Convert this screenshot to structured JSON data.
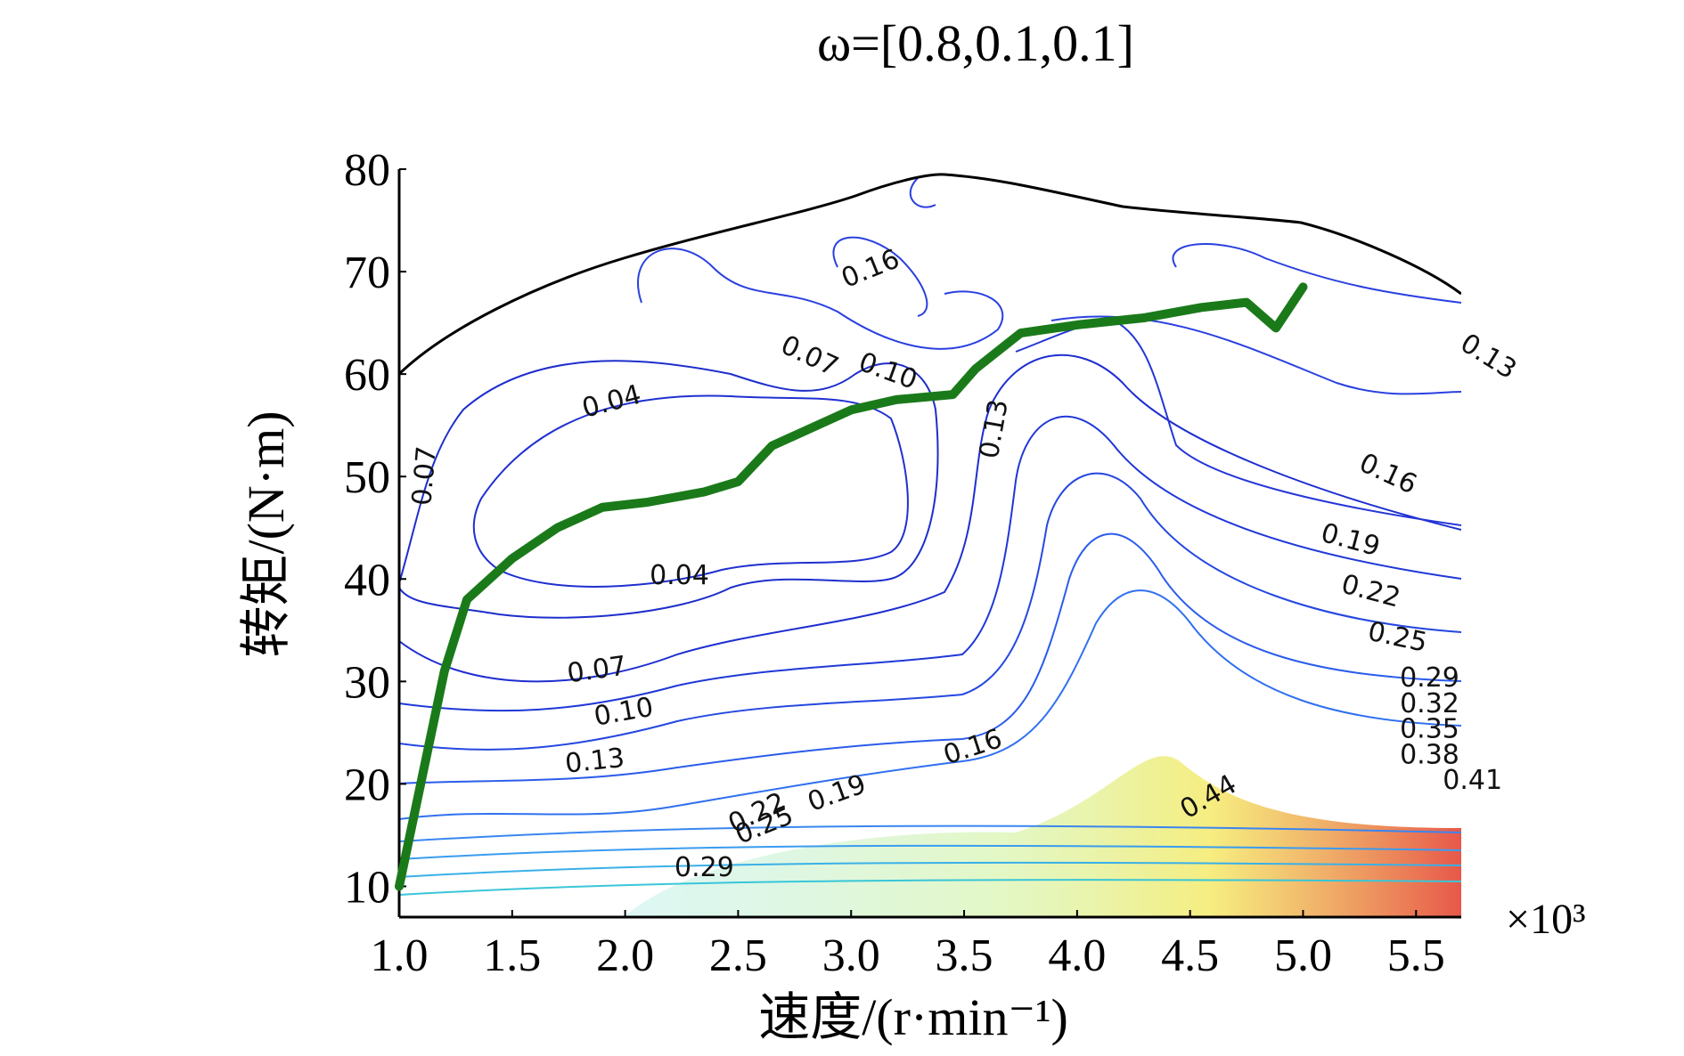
{
  "chart_data": {
    "type": "contour",
    "title": "ω=[0.8,0.1,0.1]",
    "xlabel": "速度/(r·min⁻¹)",
    "ylabel": "转矩/(N·m)",
    "x_multiplier": "×10³",
    "xlim": [
      1.0,
      5.7
    ],
    "ylim": [
      7,
      80
    ],
    "x_ticks": [
      "1.0",
      "1.5",
      "2.0",
      "2.5",
      "3.0",
      "3.5",
      "4.0",
      "4.5",
      "5.0",
      "5.5"
    ],
    "y_ticks": [
      "10",
      "20",
      "30",
      "40",
      "50",
      "60",
      "70",
      "80"
    ],
    "y_tick_values": [
      10,
      20,
      30,
      40,
      50,
      60,
      70,
      80
    ],
    "contour_labels": [
      {
        "text": "0.16",
        "x": 3.1,
        "y": 69.5,
        "angle": -22
      },
      {
        "text": "0.07",
        "x": 2.8,
        "y": 61.0,
        "angle": 25
      },
      {
        "text": "0.10",
        "x": 3.15,
        "y": 59.5,
        "angle": 20
      },
      {
        "text": "0.04",
        "x": 1.95,
        "y": 56.5,
        "angle": -15
      },
      {
        "text": "0.07",
        "x": 1.15,
        "y": 50.0,
        "angle": -85
      },
      {
        "text": "0.13",
        "x": 3.67,
        "y": 54.5,
        "angle": -80
      },
      {
        "text": "0.13",
        "x": 5.8,
        "y": 61.0,
        "angle": 32
      },
      {
        "text": "0.16",
        "x": 5.36,
        "y": 49.5,
        "angle": 25
      },
      {
        "text": "0.19",
        "x": 5.2,
        "y": 43.0,
        "angle": 15
      },
      {
        "text": "0.22",
        "x": 5.29,
        "y": 38.0,
        "angle": 15
      },
      {
        "text": "0.25",
        "x": 5.41,
        "y": 33.5,
        "angle": 12
      },
      {
        "text": "0.04",
        "x": 2.24,
        "y": 39.5,
        "angle": 0
      },
      {
        "text": "0.07",
        "x": 1.88,
        "y": 30.3,
        "angle": -8
      },
      {
        "text": "0.10",
        "x": 2.0,
        "y": 26.2,
        "angle": -10
      },
      {
        "text": "0.13",
        "x": 1.87,
        "y": 21.4,
        "angle": -6
      },
      {
        "text": "0.16",
        "x": 3.55,
        "y": 22.8,
        "angle": -18
      },
      {
        "text": "0.19",
        "x": 2.95,
        "y": 18.3,
        "angle": -20
      },
      {
        "text": "0.22",
        "x": 2.6,
        "y": 16.4,
        "angle": -25
      },
      {
        "text": "0.25",
        "x": 2.63,
        "y": 15.2,
        "angle": -22
      },
      {
        "text": "0.29",
        "x": 5.56,
        "y": 29.5,
        "angle": 0
      },
      {
        "text": "0.32",
        "x": 5.56,
        "y": 27.0,
        "angle": 0
      },
      {
        "text": "0.35",
        "x": 5.56,
        "y": 24.5,
        "angle": 0
      },
      {
        "text": "0.38",
        "x": 5.56,
        "y": 22.0,
        "angle": 0
      },
      {
        "text": "0.41",
        "x": 5.75,
        "y": 19.5,
        "angle": 0
      },
      {
        "text": "0.44",
        "x": 4.6,
        "y": 18.0,
        "angle": -30
      },
      {
        "text": "0.29",
        "x": 2.35,
        "y": 11.0,
        "angle": 0
      }
    ],
    "series": [
      {
        "name": "",
        "type": "line",
        "color": "#1a7a1a",
        "x": [
          1.0,
          1.2,
          1.3,
          1.5,
          1.7,
          1.9,
          2.1,
          2.35,
          2.5,
          2.65,
          2.85,
          3.0,
          3.2,
          3.45,
          3.55,
          3.75,
          4.0,
          4.3,
          4.55,
          4.75,
          4.88,
          5.0
        ],
        "y": [
          10,
          31,
          38,
          42,
          45,
          47,
          47.5,
          48.5,
          49.5,
          53,
          55,
          56.5,
          57.5,
          58,
          60.5,
          64,
          64.8,
          65.5,
          66.5,
          67,
          64.5,
          68.5
        ]
      }
    ],
    "grid": false,
    "legend": "none"
  }
}
